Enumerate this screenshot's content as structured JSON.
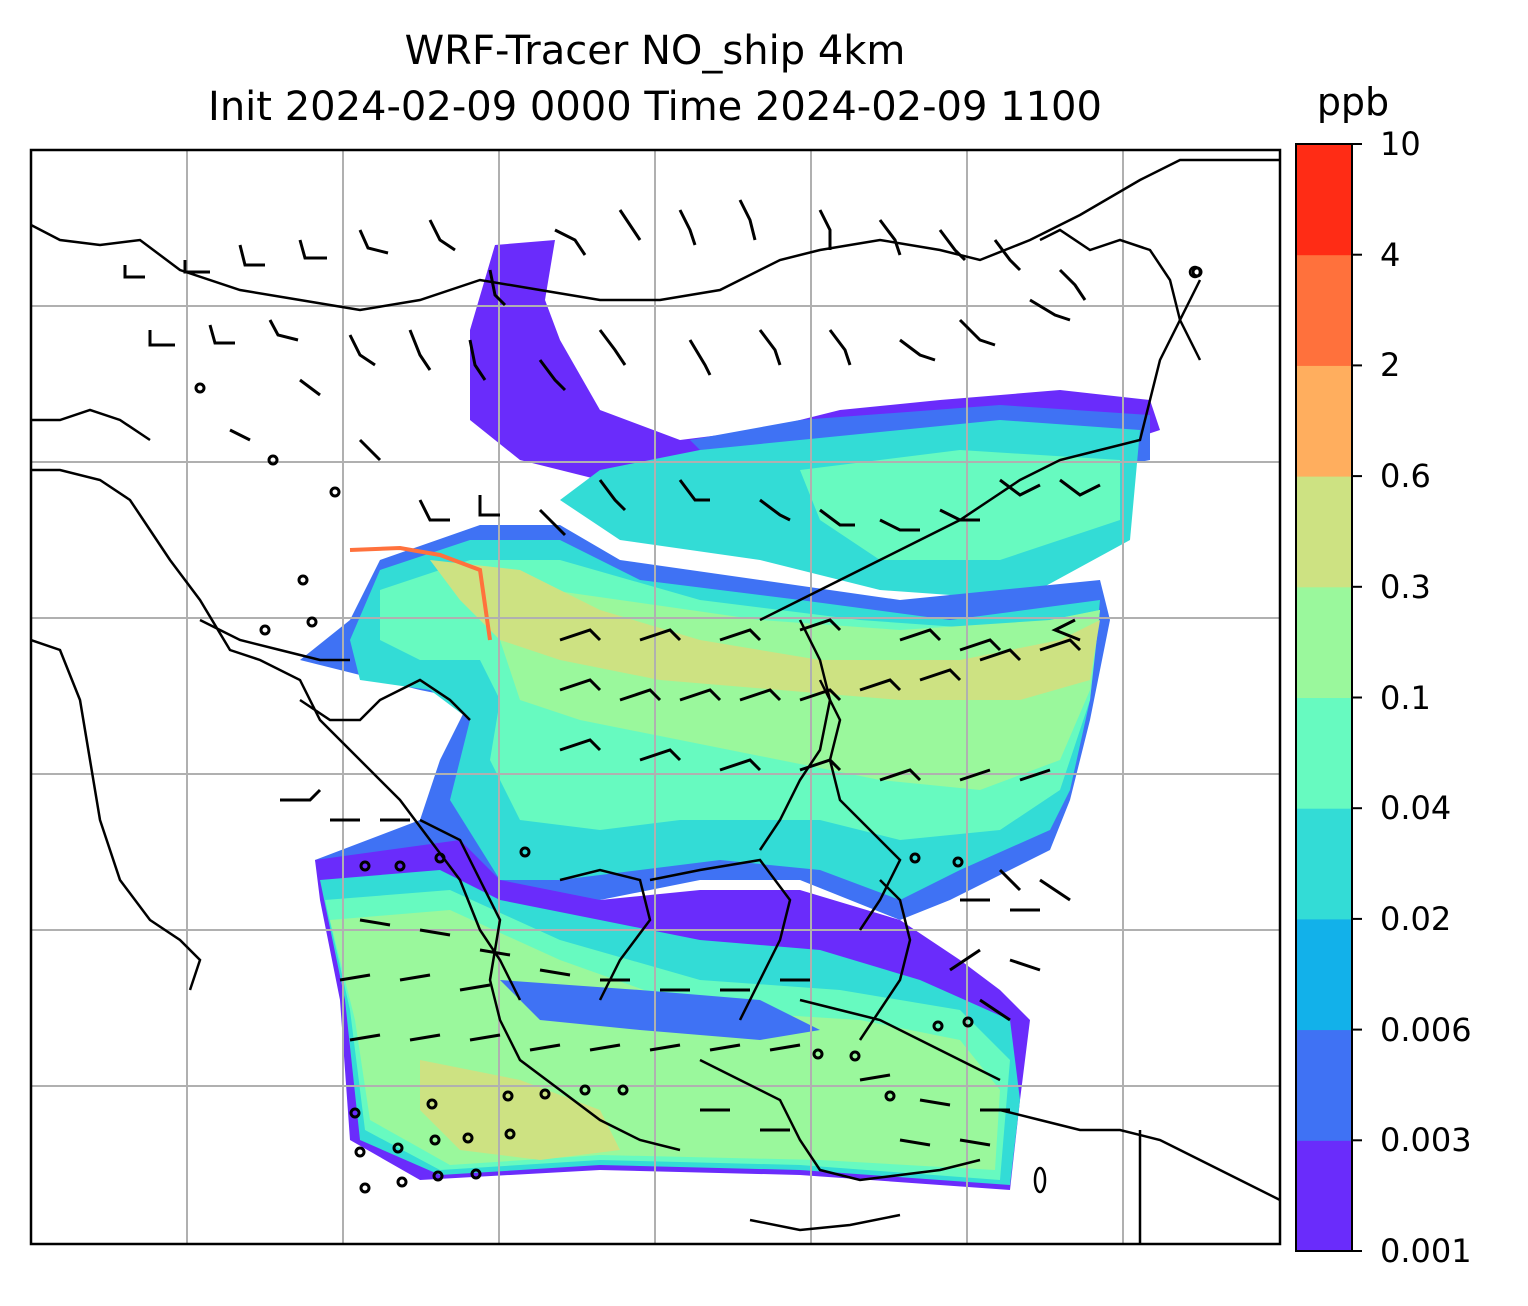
{
  "title": {
    "line1": "WRF-Tracer NO_ship 4km",
    "line2": "Init 2024-02-09 0000 Time 2024-02-09 1100"
  },
  "colorbar": {
    "unit": "ppb",
    "levels": [
      "0.001",
      "0.003",
      "0.006",
      "0.02",
      "0.04",
      "0.1",
      "0.3",
      "0.6",
      "2",
      "4",
      "10"
    ],
    "colors": [
      "#6a2cfb",
      "#3f72f4",
      "#12b1ea",
      "#33dcd6",
      "#67fac0",
      "#9af89c",
      "#cde282",
      "#ffae5e",
      "#ff713c",
      "#ff2c15"
    ]
  },
  "map": {
    "gridlines": true,
    "coastline_color": "#000000",
    "gridline_color": "#b0b0b0"
  }
}
